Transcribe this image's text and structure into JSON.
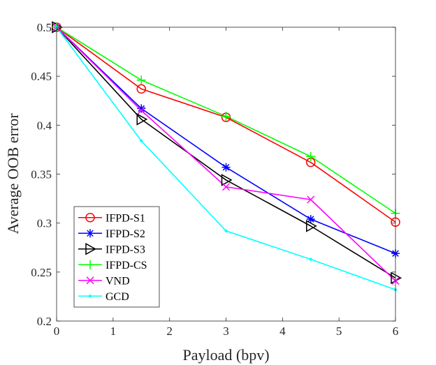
{
  "chart_data": {
    "type": "line",
    "title": "",
    "xlabel": "Payload (bpv)",
    "ylabel": "Average OOB error",
    "xlim": [
      0,
      6
    ],
    "ylim": [
      0.2,
      0.5
    ],
    "x": [
      0,
      1.5,
      3,
      4.5,
      6
    ],
    "xticks": [
      0,
      1,
      2,
      3,
      4,
      5,
      6
    ],
    "yticks": [
      0.2,
      0.25,
      0.3,
      0.35,
      0.4,
      0.45,
      0.5
    ],
    "xtick_labels": [
      "0",
      "1",
      "2",
      "3",
      "4",
      "5",
      "6"
    ],
    "ytick_labels": [
      "0.2",
      "0.25",
      "0.3",
      "0.35",
      "0.4",
      "0.45",
      "0.5"
    ],
    "grid": false,
    "legend_position": "bottom-left",
    "series": [
      {
        "name": "IFPD-S1",
        "values": [
          0.5,
          0.437,
          0.408,
          0.362,
          0.301
        ],
        "color": "#ff0000",
        "marker": "circle"
      },
      {
        "name": "IFPD-S2",
        "values": [
          0.5,
          0.417,
          0.357,
          0.304,
          0.269
        ],
        "color": "#0000ff",
        "marker": "asterisk"
      },
      {
        "name": "IFPD-S3",
        "values": [
          0.5,
          0.406,
          0.344,
          0.297,
          0.244
        ],
        "color": "#000000",
        "marker": "triangle-right"
      },
      {
        "name": "IFPD-CS",
        "values": [
          0.5,
          0.446,
          0.409,
          0.368,
          0.31
        ],
        "color": "#00ff00",
        "marker": "plus"
      },
      {
        "name": "VND",
        "values": [
          0.5,
          0.415,
          0.337,
          0.324,
          0.241
        ],
        "color": "#ff00ff",
        "marker": "x"
      },
      {
        "name": "GCD",
        "values": [
          0.5,
          0.384,
          0.292,
          0.263,
          0.232
        ],
        "color": "#00ffff",
        "marker": "dot"
      }
    ]
  }
}
